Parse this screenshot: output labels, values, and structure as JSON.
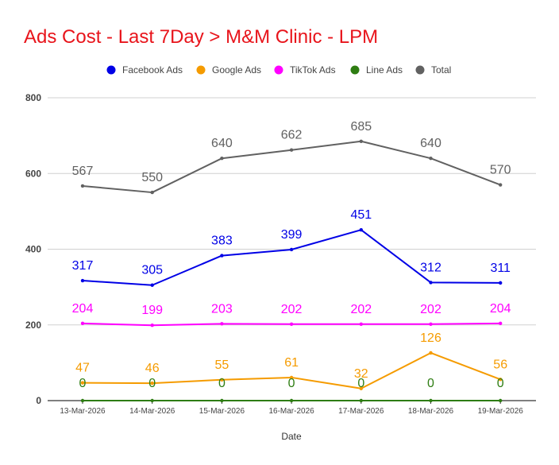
{
  "chart_data": {
    "type": "line",
    "title": "Ads Cost - Last 7Day > M&M Clinic - LPM",
    "xlabel": "Date",
    "ylabel": "",
    "ylim": [
      0,
      800
    ],
    "yticks": [
      0,
      200,
      400,
      600,
      800
    ],
    "categories": [
      "13-Mar-2026",
      "14-Mar-2026",
      "15-Mar-2026",
      "16-Mar-2026",
      "17-Mar-2026",
      "18-Mar-2026",
      "19-Mar-2026"
    ],
    "legend_position": "top",
    "grid": true,
    "series": [
      {
        "name": "Facebook Ads",
        "color": "#0000e6",
        "values": [
          317,
          305,
          383,
          399,
          451,
          312,
          311
        ]
      },
      {
        "name": "Google Ads",
        "color": "#f59b00",
        "values": [
          47,
          46,
          55,
          61,
          32,
          126,
          56
        ]
      },
      {
        "name": "TikTok Ads",
        "color": "#ff00ff",
        "values": [
          204,
          199,
          203,
          202,
          202,
          202,
          204
        ]
      },
      {
        "name": "Line Ads",
        "color": "#2e7d12",
        "values": [
          0,
          0,
          0,
          0,
          0,
          0,
          0
        ]
      },
      {
        "name": "Total",
        "color": "#616161",
        "values": [
          567,
          550,
          640,
          662,
          685,
          640,
          570
        ]
      }
    ]
  }
}
